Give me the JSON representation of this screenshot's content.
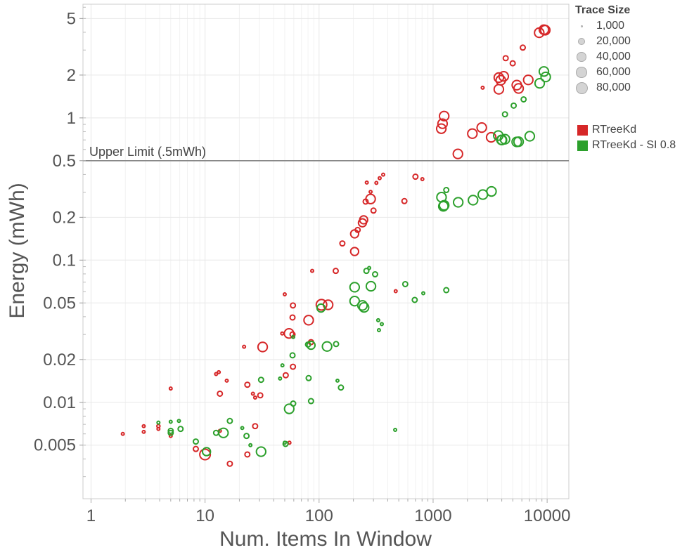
{
  "chart_data": {
    "type": "scatter",
    "xlabel": "Num. Items In Window",
    "ylabel": "Energy (mWh)",
    "x_scale": "log",
    "y_scale": "log",
    "xlim": [
      0.85,
      15500
    ],
    "ylim": [
      0.0021,
      6.3
    ],
    "x_ticks": [
      "1",
      "10",
      "100",
      "1000",
      "10000"
    ],
    "x_tick_values": [
      1,
      10,
      100,
      1000,
      10000
    ],
    "y_ticks": [
      "0.005",
      "0.01",
      "0.02",
      "0.05",
      "0.1",
      "0.2",
      "0.5",
      "1",
      "2",
      "5"
    ],
    "y_tick_values": [
      0.005,
      0.01,
      0.02,
      0.05,
      0.1,
      0.2,
      0.5,
      1,
      2,
      5
    ],
    "grid": true,
    "reference_line": {
      "value": 0.5,
      "label": "Upper Limit (.5mWh)",
      "color": "#888888"
    },
    "size_legend": {
      "title": "Trace Size",
      "entries": [
        {
          "label": "1,000",
          "value": 1000
        },
        {
          "label": "20,000",
          "value": 20000
        },
        {
          "label": "40,000",
          "value": 40000
        },
        {
          "label": "60,000",
          "value": 60000
        },
        {
          "label": "80,000",
          "value": 80000
        }
      ]
    },
    "legend_position": "top-right",
    "series": [
      {
        "name": "RTreeKd",
        "color": "#d62728",
        "points": [
          {
            "x": 1.9,
            "y": 0.006,
            "size": 1000
          },
          {
            "x": 2.9,
            "y": 0.0068,
            "size": 1000
          },
          {
            "x": 2.9,
            "y": 0.0062,
            "size": 1000
          },
          {
            "x": 3.9,
            "y": 0.0068,
            "size": 2000
          },
          {
            "x": 3.9,
            "y": 0.0065,
            "size": 1000
          },
          {
            "x": 5,
            "y": 0.0125,
            "size": 1000
          },
          {
            "x": 5,
            "y": 0.0058,
            "size": 1000
          },
          {
            "x": 8.3,
            "y": 0.0047,
            "size": 10000
          },
          {
            "x": 10,
            "y": 0.0043,
            "size": 80000
          },
          {
            "x": 12.5,
            "y": 0.0158,
            "size": 1000
          },
          {
            "x": 13.2,
            "y": 0.0163,
            "size": 1000
          },
          {
            "x": 13.5,
            "y": 0.0115,
            "size": 10000
          },
          {
            "x": 13.5,
            "y": 0.0063,
            "size": 1000
          },
          {
            "x": 15.5,
            "y": 0.0142,
            "size": 1000
          },
          {
            "x": 16.5,
            "y": 0.0037,
            "size": 10000
          },
          {
            "x": 22,
            "y": 0.0246,
            "size": 1000
          },
          {
            "x": 23.5,
            "y": 0.0133,
            "size": 10000
          },
          {
            "x": 23.5,
            "y": 0.0043,
            "size": 10000
          },
          {
            "x": 26.3,
            "y": 0.0115,
            "size": 1000
          },
          {
            "x": 27.5,
            "y": 0.0108,
            "size": 1000
          },
          {
            "x": 27.5,
            "y": 0.0068,
            "size": 10000
          },
          {
            "x": 30.5,
            "y": 0.0112,
            "size": 10000
          },
          {
            "x": 32,
            "y": 0.0245,
            "size": 60000
          },
          {
            "x": 47.5,
            "y": 0.0305,
            "size": 1000
          },
          {
            "x": 50,
            "y": 0.0575,
            "size": 1000
          },
          {
            "x": 51,
            "y": 0.0155,
            "size": 10000
          },
          {
            "x": 54.5,
            "y": 0.0305,
            "size": 60000
          },
          {
            "x": 55,
            "y": 0.0052,
            "size": 1000
          },
          {
            "x": 58.5,
            "y": 0.0395,
            "size": 10000
          },
          {
            "x": 58.5,
            "y": 0.03,
            "size": 10000
          },
          {
            "x": 59,
            "y": 0.048,
            "size": 10000
          },
          {
            "x": 59,
            "y": 0.0178,
            "size": 10000
          },
          {
            "x": 81,
            "y": 0.0378,
            "size": 60000
          },
          {
            "x": 85,
            "y": 0.0265,
            "size": 10000
          },
          {
            "x": 87,
            "y": 0.084,
            "size": 1000
          },
          {
            "x": 105,
            "y": 0.0485,
            "size": 80000
          },
          {
            "x": 120,
            "y": 0.0485,
            "size": 60000
          },
          {
            "x": 140,
            "y": 0.084,
            "size": 10000
          },
          {
            "x": 160,
            "y": 0.131,
            "size": 10000
          },
          {
            "x": 205,
            "y": 0.115,
            "size": 40000
          },
          {
            "x": 205,
            "y": 0.153,
            "size": 40000
          },
          {
            "x": 218,
            "y": 0.163,
            "size": 10000
          },
          {
            "x": 240,
            "y": 0.183,
            "size": 40000
          },
          {
            "x": 246,
            "y": 0.192,
            "size": 40000
          },
          {
            "x": 256,
            "y": 0.258,
            "size": 10000
          },
          {
            "x": 262,
            "y": 0.351,
            "size": 1000
          },
          {
            "x": 283,
            "y": 0.302,
            "size": 1000
          },
          {
            "x": 283,
            "y": 0.269,
            "size": 60000
          },
          {
            "x": 300,
            "y": 0.223,
            "size": 10000
          },
          {
            "x": 318,
            "y": 0.349,
            "size": 1000
          },
          {
            "x": 340,
            "y": 0.377,
            "size": 1000
          },
          {
            "x": 365,
            "y": 0.399,
            "size": 1000
          },
          {
            "x": 470,
            "y": 0.0605,
            "size": 1000
          },
          {
            "x": 560,
            "y": 0.26,
            "size": 10000
          },
          {
            "x": 700,
            "y": 0.386,
            "size": 10000
          },
          {
            "x": 805,
            "y": 0.371,
            "size": 1000
          },
          {
            "x": 1180,
            "y": 0.84,
            "size": 60000
          },
          {
            "x": 1210,
            "y": 0.91,
            "size": 60000
          },
          {
            "x": 1250,
            "y": 1.03,
            "size": 60000
          },
          {
            "x": 1650,
            "y": 0.558,
            "size": 60000
          },
          {
            "x": 2210,
            "y": 0.775,
            "size": 60000
          },
          {
            "x": 2670,
            "y": 0.855,
            "size": 60000
          },
          {
            "x": 2720,
            "y": 1.63,
            "size": 1000
          },
          {
            "x": 3230,
            "y": 0.73,
            "size": 60000
          },
          {
            "x": 3770,
            "y": 1.59,
            "size": 60000
          },
          {
            "x": 3770,
            "y": 1.92,
            "size": 60000
          },
          {
            "x": 3920,
            "y": 1.84,
            "size": 60000
          },
          {
            "x": 4160,
            "y": 1.96,
            "size": 60000
          },
          {
            "x": 4330,
            "y": 2.63,
            "size": 10000
          },
          {
            "x": 4990,
            "y": 2.42,
            "size": 10000
          },
          {
            "x": 5420,
            "y": 1.7,
            "size": 60000
          },
          {
            "x": 5620,
            "y": 1.61,
            "size": 60000
          },
          {
            "x": 6120,
            "y": 3.12,
            "size": 10000
          },
          {
            "x": 6830,
            "y": 1.85,
            "size": 60000
          },
          {
            "x": 8520,
            "y": 3.97,
            "size": 60000
          },
          {
            "x": 9370,
            "y": 4.17,
            "size": 60000
          },
          {
            "x": 9630,
            "y": 4.14,
            "size": 60000
          }
        ]
      },
      {
        "name": "RTreeKd - SI 0.8",
        "color": "#2ca02c",
        "points": [
          {
            "x": 3.9,
            "y": 0.0072,
            "size": 1000
          },
          {
            "x": 5,
            "y": 0.0073,
            "size": 1000
          },
          {
            "x": 5,
            "y": 0.0063,
            "size": 10000
          },
          {
            "x": 5,
            "y": 0.0061,
            "size": 10000
          },
          {
            "x": 5.9,
            "y": 0.0074,
            "size": 1000
          },
          {
            "x": 6.1,
            "y": 0.0065,
            "size": 10000
          },
          {
            "x": 8.3,
            "y": 0.0053,
            "size": 10000
          },
          {
            "x": 10.3,
            "y": 0.0045,
            "size": 40000
          },
          {
            "x": 12.5,
            "y": 0.0061,
            "size": 10000
          },
          {
            "x": 14.5,
            "y": 0.0061,
            "size": 60000
          },
          {
            "x": 16.5,
            "y": 0.0074,
            "size": 10000
          },
          {
            "x": 21.2,
            "y": 0.0066,
            "size": 1000
          },
          {
            "x": 23.1,
            "y": 0.0058,
            "size": 10000
          },
          {
            "x": 25,
            "y": 0.005,
            "size": 1000
          },
          {
            "x": 31,
            "y": 0.0045,
            "size": 60000
          },
          {
            "x": 31,
            "y": 0.0144,
            "size": 10000
          },
          {
            "x": 45.5,
            "y": 0.0147,
            "size": 1000
          },
          {
            "x": 47.7,
            "y": 0.0182,
            "size": 1000
          },
          {
            "x": 50,
            "y": 0.0052,
            "size": 1000
          },
          {
            "x": 50.8,
            "y": 0.0051,
            "size": 10000
          },
          {
            "x": 54.7,
            "y": 0.009,
            "size": 60000
          },
          {
            "x": 58.5,
            "y": 0.0214,
            "size": 10000
          },
          {
            "x": 59.3,
            "y": 0.0098,
            "size": 10000
          },
          {
            "x": 59.3,
            "y": 0.0288,
            "size": 1000
          },
          {
            "x": 80,
            "y": 0.0255,
            "size": 10000
          },
          {
            "x": 81,
            "y": 0.0148,
            "size": 10000
          },
          {
            "x": 85,
            "y": 0.0102,
            "size": 10000
          },
          {
            "x": 85,
            "y": 0.0252,
            "size": 40000
          },
          {
            "x": 104,
            "y": 0.046,
            "size": 40000
          },
          {
            "x": 117.5,
            "y": 0.0247,
            "size": 60000
          },
          {
            "x": 141,
            "y": 0.0257,
            "size": 10000
          },
          {
            "x": 145,
            "y": 0.0142,
            "size": 1000
          },
          {
            "x": 155.5,
            "y": 0.0127,
            "size": 10000
          },
          {
            "x": 205,
            "y": 0.0645,
            "size": 60000
          },
          {
            "x": 205,
            "y": 0.0515,
            "size": 60000
          },
          {
            "x": 240,
            "y": 0.048,
            "size": 60000
          },
          {
            "x": 248,
            "y": 0.0465,
            "size": 60000
          },
          {
            "x": 260,
            "y": 0.084,
            "size": 10000
          },
          {
            "x": 275,
            "y": 0.088,
            "size": 1000
          },
          {
            "x": 285,
            "y": 0.0655,
            "size": 60000
          },
          {
            "x": 310,
            "y": 0.0795,
            "size": 10000
          },
          {
            "x": 335,
            "y": 0.0322,
            "size": 1000
          },
          {
            "x": 355,
            "y": 0.0355,
            "size": 1000
          },
          {
            "x": 330,
            "y": 0.0378,
            "size": 1000
          },
          {
            "x": 465,
            "y": 0.0064,
            "size": 1000
          },
          {
            "x": 570,
            "y": 0.0678,
            "size": 10000
          },
          {
            "x": 690,
            "y": 0.0525,
            "size": 10000
          },
          {
            "x": 820,
            "y": 0.0585,
            "size": 1000
          },
          {
            "x": 1185,
            "y": 0.277,
            "size": 60000
          },
          {
            "x": 1230,
            "y": 0.239,
            "size": 60000
          },
          {
            "x": 1250,
            "y": 0.243,
            "size": 60000
          },
          {
            "x": 1305,
            "y": 0.311,
            "size": 10000
          },
          {
            "x": 1305,
            "y": 0.0615,
            "size": 10000
          },
          {
            "x": 1660,
            "y": 0.255,
            "size": 60000
          },
          {
            "x": 2240,
            "y": 0.264,
            "size": 60000
          },
          {
            "x": 2730,
            "y": 0.289,
            "size": 60000
          },
          {
            "x": 3250,
            "y": 0.304,
            "size": 60000
          },
          {
            "x": 3730,
            "y": 0.751,
            "size": 60000
          },
          {
            "x": 3980,
            "y": 0.7,
            "size": 60000
          },
          {
            "x": 4020,
            "y": 0.7,
            "size": 60000
          },
          {
            "x": 4270,
            "y": 0.708,
            "size": 60000
          },
          {
            "x": 4270,
            "y": 1.06,
            "size": 10000
          },
          {
            "x": 5410,
            "y": 0.678,
            "size": 60000
          },
          {
            "x": 5620,
            "y": 0.68,
            "size": 60000
          },
          {
            "x": 5090,
            "y": 1.22,
            "size": 10000
          },
          {
            "x": 6220,
            "y": 1.35,
            "size": 10000
          },
          {
            "x": 7040,
            "y": 0.743,
            "size": 60000
          },
          {
            "x": 8600,
            "y": 1.75,
            "size": 60000
          },
          {
            "x": 9370,
            "y": 2.12,
            "size": 60000
          },
          {
            "x": 9710,
            "y": 1.94,
            "size": 60000
          }
        ]
      }
    ]
  }
}
